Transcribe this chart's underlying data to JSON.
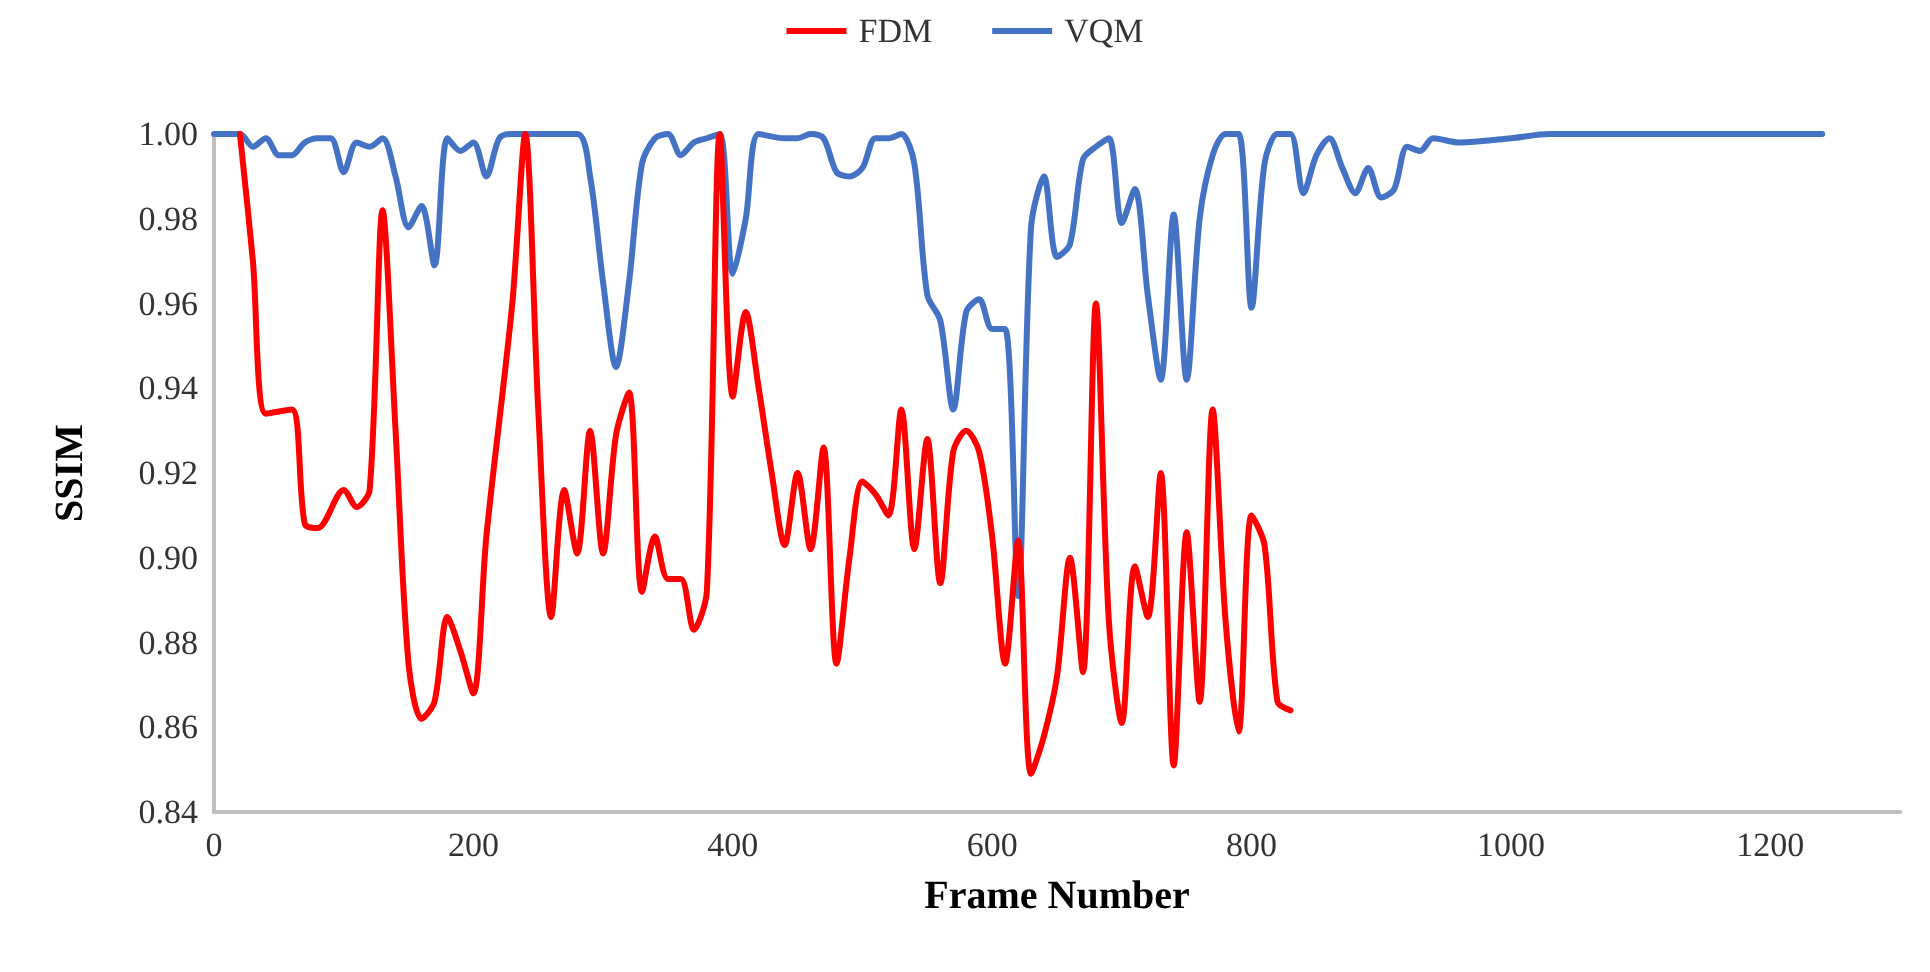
{
  "chart_data": {
    "type": "line",
    "xlabel": "Frame Number",
    "ylabel": "SSIM",
    "xlim": [
      0,
      1300
    ],
    "xticks": [
      0,
      200,
      400,
      600,
      800,
      1000,
      1200
    ],
    "ylim": [
      0.84,
      1.0
    ],
    "yticks": [
      {
        "value": 0.84,
        "label": "0.84"
      },
      {
        "value": 0.86,
        "label": "0.86"
      },
      {
        "value": 0.88,
        "label": "0.88"
      },
      {
        "value": 0.9,
        "label": "0.90"
      },
      {
        "value": 0.92,
        "label": "0.92"
      },
      {
        "value": 0.94,
        "label": "0.94"
      },
      {
        "value": 0.96,
        "label": "0.96"
      },
      {
        "value": 0.98,
        "label": "0.98"
      },
      {
        "value": 1.0,
        "label": "1.00"
      }
    ],
    "grid": false,
    "legend": "top",
    "marker": "none",
    "line_style": "solid",
    "series": [
      {
        "name": "FDM",
        "color": "#ff0000",
        "x": [
          20,
          30,
          40,
          60,
          70,
          80,
          100,
          110,
          120,
          130,
          140,
          150,
          160,
          170,
          180,
          190,
          200,
          210,
          230,
          240,
          250,
          260,
          270,
          280,
          290,
          300,
          310,
          320,
          330,
          340,
          350,
          360,
          370,
          380,
          390,
          400,
          410,
          420,
          430,
          440,
          450,
          460,
          470,
          480,
          490,
          500,
          510,
          520,
          530,
          540,
          550,
          560,
          570,
          580,
          590,
          600,
          610,
          620,
          630,
          640,
          650,
          660,
          670,
          680,
          690,
          700,
          710,
          720,
          730,
          740,
          750,
          760,
          770,
          780,
          790,
          800,
          810,
          820,
          830
        ],
        "values": [
          1.0,
          0.97,
          0.934,
          0.935,
          0.908,
          0.907,
          0.916,
          0.912,
          0.916,
          0.982,
          0.93,
          0.875,
          0.862,
          0.866,
          0.886,
          0.878,
          0.868,
          0.905,
          0.96,
          1.0,
          0.935,
          0.886,
          0.916,
          0.901,
          0.93,
          0.901,
          0.929,
          0.939,
          0.892,
          0.905,
          0.895,
          0.895,
          0.883,
          0.892,
          1.0,
          0.938,
          0.958,
          0.94,
          0.92,
          0.903,
          0.92,
          0.902,
          0.926,
          0.875,
          0.9,
          0.918,
          0.915,
          0.91,
          0.935,
          0.902,
          0.928,
          0.894,
          0.925,
          0.93,
          0.925,
          0.905,
          0.875,
          0.904,
          0.849,
          0.858,
          0.872,
          0.9,
          0.873,
          0.96,
          0.885,
          0.861,
          0.898,
          0.886,
          0.92,
          0.851,
          0.906,
          0.866,
          0.935,
          0.885,
          0.859,
          0.91,
          0.903,
          0.866,
          0.864
        ]
      },
      {
        "name": "VQM",
        "color": "#4472c4",
        "x": [
          0,
          20,
          30,
          40,
          50,
          60,
          70,
          80,
          90,
          100,
          110,
          120,
          130,
          140,
          150,
          160,
          170,
          180,
          190,
          200,
          210,
          220,
          230,
          280,
          290,
          300,
          310,
          320,
          330,
          340,
          350,
          360,
          370,
          380,
          390,
          400,
          410,
          420,
          440,
          450,
          460,
          470,
          480,
          490,
          500,
          510,
          520,
          530,
          540,
          550,
          560,
          570,
          580,
          590,
          600,
          610,
          620,
          630,
          640,
          650,
          660,
          670,
          680,
          690,
          700,
          710,
          720,
          730,
          740,
          750,
          760,
          770,
          780,
          790,
          800,
          810,
          820,
          830,
          840,
          850,
          860,
          870,
          880,
          890,
          900,
          910,
          920,
          930,
          940,
          960,
          1000,
          1030,
          1240
        ],
        "values": [
          1.0,
          1.0,
          0.997,
          0.999,
          0.995,
          0.995,
          0.998,
          0.999,
          0.999,
          0.991,
          0.998,
          0.997,
          0.999,
          0.99,
          0.978,
          0.983,
          0.969,
          0.999,
          0.996,
          0.998,
          0.99,
          0.999,
          1.0,
          1.0,
          0.99,
          0.965,
          0.945,
          0.965,
          0.993,
          0.999,
          1.0,
          0.995,
          0.998,
          0.999,
          1.0,
          0.967,
          0.98,
          1.0,
          0.999,
          0.999,
          1.0,
          0.999,
          0.991,
          0.99,
          0.992,
          0.999,
          0.999,
          1.0,
          0.993,
          0.962,
          0.956,
          0.935,
          0.958,
          0.961,
          0.954,
          0.954,
          0.891,
          0.978,
          0.99,
          0.971,
          0.974,
          0.994,
          0.997,
          0.999,
          0.979,
          0.987,
          0.962,
          0.942,
          0.981,
          0.942,
          0.98,
          0.995,
          1.0,
          1.0,
          0.959,
          0.993,
          1.0,
          1.0,
          0.986,
          0.995,
          0.999,
          0.992,
          0.986,
          0.992,
          0.985,
          0.987,
          0.997,
          0.996,
          0.999,
          0.998,
          0.999,
          1.0,
          1.0
        ]
      }
    ]
  }
}
